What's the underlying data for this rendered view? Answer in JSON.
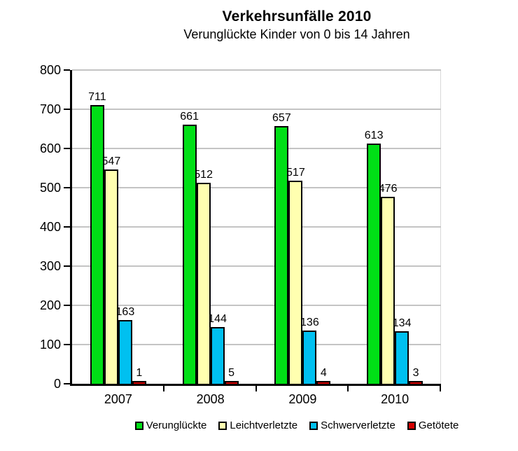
{
  "header": {
    "title": "Verkehrsunfälle 2010",
    "subtitle": "Verunglückte Kinder von 0 bis 14 Jahren"
  },
  "chart_data": {
    "type": "bar",
    "title": "Verkehrsunfälle 2010",
    "subtitle": "Verunglückte Kinder von 0 bis 14 Jahren",
    "xlabel": "",
    "ylabel": "",
    "categories": [
      "2007",
      "2008",
      "2009",
      "2010"
    ],
    "series": [
      {
        "name": "Verunglückte",
        "color": "#00DF16",
        "values": [
          711,
          661,
          657,
          613
        ]
      },
      {
        "name": "Leichtverletzte",
        "color": "#FFFFB0",
        "values": [
          547,
          512,
          517,
          476
        ]
      },
      {
        "name": "Schwerverletzte",
        "color": "#00C0F0",
        "values": [
          163,
          144,
          136,
          134
        ]
      },
      {
        "name": "Getötete",
        "color": "#D40000",
        "values": [
          1,
          5,
          4,
          3
        ]
      }
    ],
    "ylim": [
      0,
      800
    ],
    "yticks": [
      0,
      100,
      200,
      300,
      400,
      500,
      600,
      700,
      800
    ],
    "grid": true,
    "legend_position": "bottom",
    "data_labels": true
  },
  "colors": {
    "background": "#ffffff",
    "axis": "#000000",
    "gridline": "#c4c4c4",
    "bar_border": "#000000",
    "text": "#000000"
  }
}
